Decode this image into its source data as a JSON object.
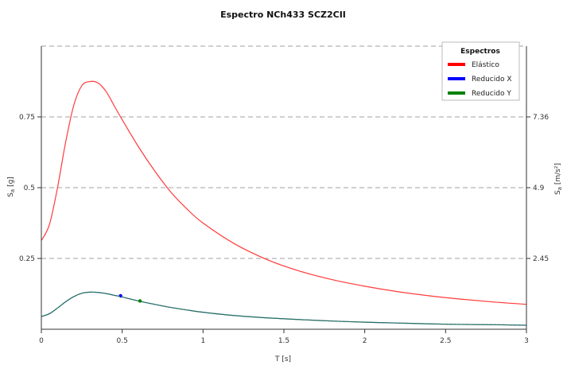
{
  "chart_data": {
    "type": "line",
    "title": "Espectro NCh433 SCZ2CII",
    "xlabel": "T [s]",
    "ylabel": "S",
    "ylabel_sub": "a",
    "ylabel_unit": " [g]",
    "y2label": "S",
    "y2label_sub": "a",
    "y2label_unit": " [m/s²]",
    "xlim": [
      0,
      3
    ],
    "ylim": [
      0,
      1
    ],
    "x_ticks": [
      0,
      0.5,
      1,
      1.5,
      2,
      2.5,
      3
    ],
    "x_tick_labels": [
      "0",
      "0.5",
      "1",
      "1.5",
      "2",
      "2.5",
      "3"
    ],
    "y_ticks": [
      0.25,
      0.5,
      0.75
    ],
    "y_tick_labels": [
      "0.25",
      "0.5",
      "0.75"
    ],
    "y2_ticks": [
      0.25,
      0.5,
      0.75
    ],
    "y2_tick_labels": [
      "2.45",
      "4.9",
      "7.36"
    ],
    "grid": "horizontal-dashed",
    "legend": {
      "title": "Espectros",
      "placement": "top-right"
    },
    "series": [
      {
        "name": "Elástico",
        "color": "#ff0000",
        "x": [
          0,
          0.05,
          0.1,
          0.15,
          0.2,
          0.25,
          0.3,
          0.35,
          0.4,
          0.45,
          0.5,
          0.6,
          0.7,
          0.8,
          0.9,
          1.0,
          1.2,
          1.4,
          1.6,
          1.8,
          2.0,
          2.2,
          2.4,
          2.6,
          2.8,
          3.0
        ],
        "values": [
          0.313,
          0.37,
          0.5,
          0.66,
          0.79,
          0.86,
          0.875,
          0.87,
          0.84,
          0.79,
          0.74,
          0.645,
          0.56,
          0.485,
          0.425,
          0.375,
          0.3,
          0.245,
          0.205,
          0.175,
          0.152,
          0.133,
          0.118,
          0.106,
          0.096,
          0.088
        ]
      },
      {
        "name": "Reducido X",
        "color": "#0000ff",
        "marker_x": 0.49,
        "marker_y": 0.118,
        "x": [
          0,
          0.05,
          0.1,
          0.15,
          0.2,
          0.25,
          0.3,
          0.35,
          0.4,
          0.45,
          0.5,
          0.6,
          0.7,
          0.8,
          0.9,
          1.0,
          1.2,
          1.4,
          1.6,
          1.8,
          2.0,
          2.2,
          2.4,
          2.6,
          2.8,
          3.0
        ],
        "values": [
          0.045,
          0.055,
          0.075,
          0.097,
          0.115,
          0.127,
          0.131,
          0.13,
          0.126,
          0.12,
          0.114,
          0.1,
          0.088,
          0.077,
          0.068,
          0.06,
          0.048,
          0.04,
          0.034,
          0.029,
          0.025,
          0.022,
          0.019,
          0.017,
          0.016,
          0.014
        ]
      },
      {
        "name": "Reducido Y",
        "color": "#008000",
        "marker_x": 0.61,
        "marker_y": 0.1,
        "x": [
          0,
          0.05,
          0.1,
          0.15,
          0.2,
          0.25,
          0.3,
          0.35,
          0.4,
          0.45,
          0.5,
          0.6,
          0.7,
          0.8,
          0.9,
          1.0,
          1.2,
          1.4,
          1.6,
          1.8,
          2.0,
          2.2,
          2.4,
          2.6,
          2.8,
          3.0
        ],
        "values": [
          0.045,
          0.055,
          0.075,
          0.097,
          0.115,
          0.127,
          0.131,
          0.13,
          0.126,
          0.12,
          0.114,
          0.1,
          0.088,
          0.077,
          0.068,
          0.06,
          0.048,
          0.04,
          0.034,
          0.029,
          0.025,
          0.022,
          0.019,
          0.017,
          0.016,
          0.014
        ]
      }
    ]
  }
}
